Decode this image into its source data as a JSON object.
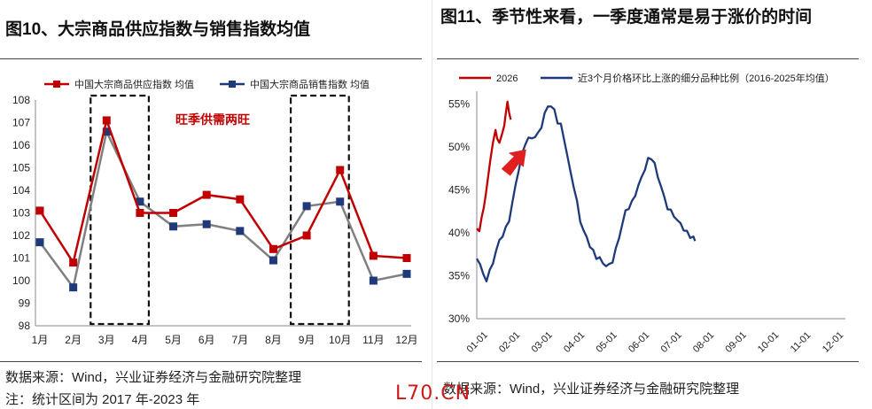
{
  "left": {
    "title": "图10、大宗商品供应指数与销售指数均值",
    "source": "数据来源：Wind，兴业证券经济与金融研究院整理",
    "note": "注：统计区间为 2017 年-2023 年",
    "chart_data": {
      "type": "line",
      "categories": [
        "1月",
        "2月",
        "3月",
        "4月",
        "5月",
        "6月",
        "7月",
        "8月",
        "9月",
        "10月",
        "11月",
        "12月"
      ],
      "series": [
        {
          "name": "中国大宗商品供应指数 均值",
          "color": "#c00000",
          "values": [
            103.1,
            100.8,
            107.1,
            103.0,
            103.0,
            103.8,
            103.6,
            101.4,
            102.0,
            104.9,
            101.1,
            101.0
          ]
        },
        {
          "name": "中国大宗商品销售指数 均值",
          "color": "#1f3a7a",
          "values": [
            101.7,
            99.7,
            106.6,
            103.5,
            102.4,
            102.5,
            102.2,
            100.9,
            103.3,
            103.5,
            100.0,
            100.3
          ]
        }
      ],
      "ylim": [
        98,
        108
      ],
      "yticks": [
        "98",
        "99",
        "100",
        "101",
        "102",
        "103",
        "104",
        "105",
        "106",
        "107",
        "108"
      ],
      "annotation": "旺季供需两旺",
      "boxes": [
        [
          3,
          4
        ],
        [
          9,
          10
        ]
      ],
      "legend": "top"
    }
  },
  "right": {
    "title": "图11、季节性来看，一季度通常是易于涨价的时间",
    "source": "数据来源：Wind，兴业证券经济与金融研究院整理",
    "chart_data": {
      "type": "line",
      "x_labels": [
        "01-01",
        "02-01",
        "03-01",
        "04-01",
        "05-01",
        "06-01",
        "07-01",
        "08-01",
        "09-01",
        "10-01",
        "11-01",
        "12-01"
      ],
      "yticks": [
        "30%",
        "35%",
        "40%",
        "45%",
        "50%",
        "55%"
      ],
      "ylim": [
        30,
        56
      ],
      "series": [
        {
          "name": "2026",
          "color": "#c00000",
          "points": [
            [
              0,
              40.5
            ],
            [
              0.08,
              40.2
            ],
            [
              0.15,
              41.8
            ],
            [
              0.22,
              43.0
            ],
            [
              0.28,
              44.5
            ],
            [
              0.35,
              46.5
            ],
            [
              0.42,
              48.5
            ],
            [
              0.5,
              50.5
            ],
            [
              0.58,
              52.0
            ],
            [
              0.63,
              51.0
            ],
            [
              0.7,
              50.5
            ],
            [
              0.78,
              51.5
            ],
            [
              0.85,
              52.5
            ],
            [
              0.9,
              54.0
            ],
            [
              0.95,
              55.3
            ],
            [
              1.0,
              54.0
            ],
            [
              1.05,
              53.2
            ]
          ]
        },
        {
          "name": "近3个月价格环比上涨的细分品种比例（2016-2025年均值）",
          "color": "#1f3a7a",
          "points": [
            [
              0,
              37.0
            ],
            [
              0.1,
              36.5
            ],
            [
              0.2,
              35.0
            ],
            [
              0.3,
              34.6
            ],
            [
              0.4,
              35.5
            ],
            [
              0.5,
              36.5
            ],
            [
              0.6,
              38.0
            ],
            [
              0.7,
              39.0
            ],
            [
              0.8,
              39.8
            ],
            [
              0.9,
              40.5
            ],
            [
              1.0,
              41.5
            ],
            [
              1.1,
              43.5
            ],
            [
              1.2,
              45.5
            ],
            [
              1.3,
              47.5
            ],
            [
              1.4,
              49.0
            ],
            [
              1.5,
              50.5
            ],
            [
              1.6,
              51.0
            ],
            [
              1.7,
              51.0
            ],
            [
              1.8,
              51.3
            ],
            [
              1.9,
              51.5
            ],
            [
              2.0,
              52.5
            ],
            [
              2.1,
              53.8
            ],
            [
              2.2,
              54.8
            ],
            [
              2.3,
              54.8
            ],
            [
              2.4,
              54.2
            ],
            [
              2.5,
              53.0
            ],
            [
              2.6,
              52.5
            ],
            [
              2.7,
              51.0
            ],
            [
              2.8,
              49.0
            ],
            [
              2.9,
              47.0
            ],
            [
              3.0,
              45.5
            ],
            [
              3.1,
              43.5
            ],
            [
              3.2,
              41.5
            ],
            [
              3.3,
              40.2
            ],
            [
              3.4,
              39.5
            ],
            [
              3.5,
              38.5
            ],
            [
              3.6,
              37.8
            ],
            [
              3.7,
              37.2
            ],
            [
              3.8,
              37.0
            ],
            [
              3.9,
              36.5
            ],
            [
              4.0,
              36.2
            ],
            [
              4.1,
              36.2
            ],
            [
              4.2,
              36.8
            ],
            [
              4.3,
              38.0
            ],
            [
              4.4,
              39.5
            ],
            [
              4.5,
              41.0
            ],
            [
              4.6,
              42.5
            ],
            [
              4.7,
              43.0
            ],
            [
              4.8,
              43.5
            ],
            [
              4.9,
              44.5
            ],
            [
              5.0,
              45.5
            ],
            [
              5.1,
              46.5
            ],
            [
              5.2,
              47.5
            ],
            [
              5.3,
              48.5
            ],
            [
              5.4,
              48.8
            ],
            [
              5.5,
              48.0
            ],
            [
              5.6,
              46.5
            ],
            [
              5.7,
              45.5
            ],
            [
              5.8,
              44.0
            ],
            [
              5.9,
              43.0
            ],
            [
              6.0,
              42.5
            ],
            [
              6.1,
              42.0
            ],
            [
              6.2,
              41.5
            ],
            [
              6.3,
              41.0
            ],
            [
              6.4,
              40.5
            ],
            [
              6.5,
              40.0
            ],
            [
              6.6,
              39.6
            ],
            [
              6.7,
              39.5
            ],
            [
              6.75,
              39.3
            ]
          ]
        }
      ],
      "legend": "top-left"
    }
  },
  "watermark": "L70.CN"
}
